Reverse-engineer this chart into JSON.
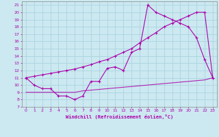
{
  "xlabel": "Windchill (Refroidissement éolien,°C)",
  "background_color": "#cce8f0",
  "grid_color": "#aad4e0",
  "line_color": "#aa00aa",
  "xlim": [
    -0.5,
    23.5
  ],
  "ylim": [
    7,
    21.5
  ],
  "xticks": [
    0,
    1,
    2,
    3,
    4,
    5,
    6,
    7,
    8,
    9,
    10,
    11,
    12,
    13,
    14,
    15,
    16,
    17,
    18,
    19,
    20,
    21,
    22,
    23
  ],
  "yticks": [
    7,
    8,
    9,
    10,
    11,
    12,
    13,
    14,
    15,
    16,
    17,
    18,
    19,
    20,
    21
  ],
  "line1_x": [
    0,
    1,
    2,
    3,
    4,
    5,
    6,
    7,
    8,
    9,
    10,
    11,
    12,
    13,
    14,
    15,
    16,
    17,
    18,
    19,
    20,
    21,
    22,
    23
  ],
  "line1_y": [
    11.0,
    10.0,
    9.5,
    9.5,
    8.5,
    8.5,
    8.0,
    8.5,
    10.5,
    10.5,
    12.3,
    12.5,
    12.0,
    14.5,
    15.0,
    21.0,
    20.0,
    19.5,
    19.0,
    18.5,
    18.0,
    16.5,
    13.5,
    11.0
  ],
  "line2_x": [
    0,
    1,
    2,
    3,
    4,
    5,
    6,
    7,
    8,
    9,
    10,
    11,
    12,
    13,
    14,
    15,
    16,
    17,
    18,
    19,
    20,
    21,
    22,
    23
  ],
  "line2_y": [
    11.0,
    11.2,
    11.4,
    11.6,
    11.8,
    12.0,
    12.2,
    12.5,
    12.8,
    13.2,
    13.5,
    14.0,
    14.5,
    15.0,
    15.8,
    16.5,
    17.2,
    18.0,
    18.5,
    19.0,
    19.5,
    20.0,
    20.0,
    11.0
  ],
  "line3_x": [
    0,
    1,
    2,
    3,
    4,
    5,
    6,
    7,
    8,
    9,
    10,
    11,
    12,
    13,
    14,
    15,
    16,
    17,
    18,
    19,
    20,
    21,
    22,
    23
  ],
  "line3_y": [
    9.0,
    9.0,
    9.0,
    9.0,
    9.0,
    9.0,
    9.0,
    9.2,
    9.3,
    9.4,
    9.5,
    9.6,
    9.7,
    9.8,
    9.9,
    10.0,
    10.1,
    10.2,
    10.3,
    10.4,
    10.5,
    10.6,
    10.7,
    11.0
  ]
}
